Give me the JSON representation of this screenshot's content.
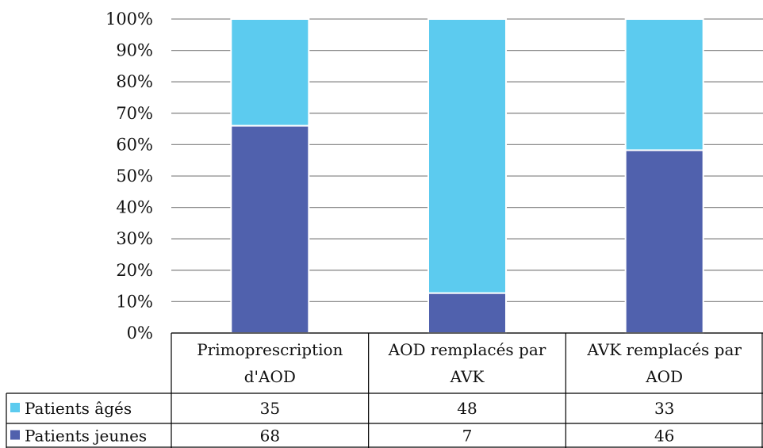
{
  "chart_data": {
    "type": "bar",
    "stacked": true,
    "percent": true,
    "categories": [
      "Primoprescription d'AOD",
      "AOD remplacés par AVK",
      "AVK remplacés par AOD"
    ],
    "category_lines": [
      [
        "Primoprescription",
        "d'AOD"
      ],
      [
        "AOD remplacés par",
        "AVK"
      ],
      [
        "AVK remplacés par",
        "AOD"
      ]
    ],
    "series": [
      {
        "name": "Patients jeunes",
        "values": [
          68,
          7,
          46
        ],
        "color": "#5061ad"
      },
      {
        "name": "Patients âgés",
        "values": [
          35,
          48,
          33
        ],
        "color": "#5ccbef"
      }
    ],
    "ylim": [
      0,
      100
    ],
    "yticks": [
      "0%",
      "10%",
      "20%",
      "30%",
      "40%",
      "50%",
      "60%",
      "70%",
      "80%",
      "90%",
      "100%"
    ],
    "grid": true,
    "legend": "data-table"
  }
}
